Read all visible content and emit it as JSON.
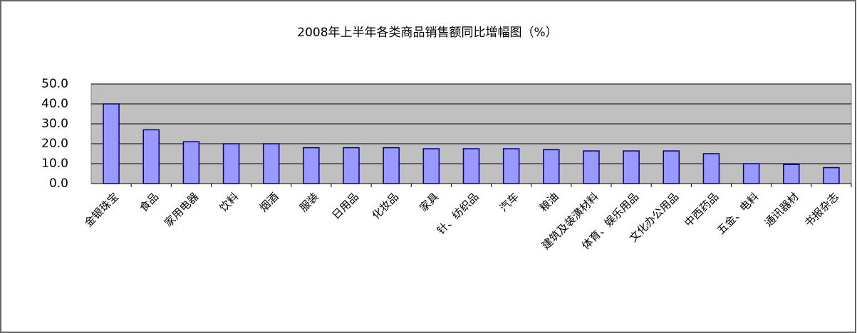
{
  "chart_data": {
    "type": "bar",
    "title": "2008年上半年各类商品销售额同比增幅图（%）",
    "categories": [
      "金银珠宝",
      "食品",
      "家用电器",
      "饮料",
      "烟酒",
      "服装",
      "日用品",
      "化妆品",
      "家具",
      "针、纺织品",
      "汽车",
      "粮油",
      "建筑及装潢材料",
      "体育、娱乐用品",
      "文化办公用品",
      "中西药品",
      "五金、电料",
      "通讯器材",
      "书报杂志"
    ],
    "values": [
      40,
      27,
      21,
      20,
      20,
      18,
      18,
      18,
      17.5,
      17.5,
      17.5,
      17,
      16.4,
      16.4,
      16.4,
      15,
      10,
      9.6,
      8
    ],
    "color": "#9999ff",
    "ylim": [
      0,
      50
    ],
    "yticks": [
      {
        "value": 0,
        "label": "0.0"
      },
      {
        "value": 10,
        "label": "10.0"
      },
      {
        "value": 20,
        "label": "20.0"
      },
      {
        "value": 30,
        "label": "30.0"
      },
      {
        "value": 40,
        "label": "40.0"
      },
      {
        "value": 50,
        "label": "50.0"
      }
    ],
    "grid": true
  }
}
